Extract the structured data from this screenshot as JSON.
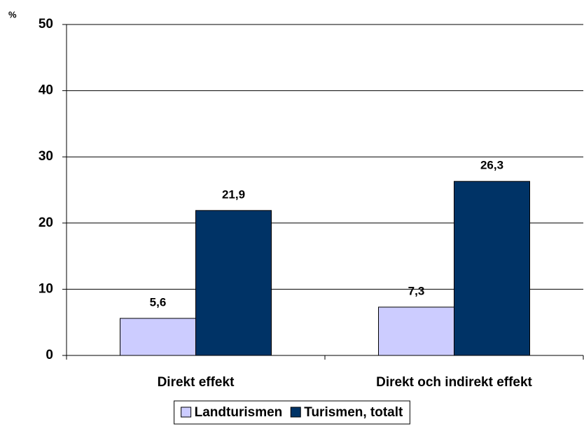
{
  "chart_data": {
    "type": "bar",
    "y_label": "%",
    "categories": [
      "Direkt effekt",
      "Direkt och indirekt effekt"
    ],
    "series": [
      {
        "name": "Landturismen",
        "color": "#ccccff",
        "values": [
          5.6,
          7.3
        ],
        "value_labels": [
          "5,6",
          "7,3"
        ]
      },
      {
        "name": "Turismen, totalt",
        "color": "#003366",
        "values": [
          21.9,
          26.3
        ],
        "value_labels": [
          "21,9",
          "26,3"
        ]
      }
    ],
    "ylim": [
      0,
      50
    ],
    "yticks": [
      0,
      10,
      20,
      30,
      40,
      50
    ],
    "grid": true,
    "legend": "bottom"
  }
}
